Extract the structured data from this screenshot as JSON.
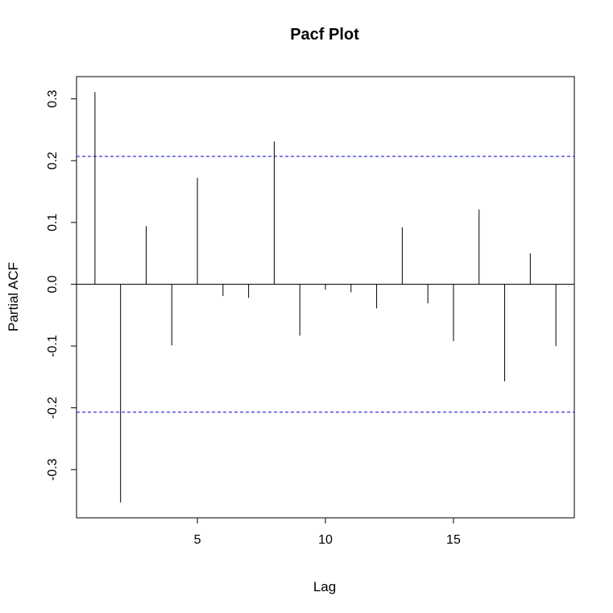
{
  "chart_data": {
    "type": "bar",
    "title": "Pacf Plot",
    "xlabel": "Lag",
    "ylabel": "Partial ACF",
    "x": [
      1,
      2,
      3,
      4,
      5,
      6,
      7,
      8,
      9,
      10,
      11,
      12,
      13,
      14,
      15,
      16,
      17,
      18,
      19
    ],
    "values": [
      0.311,
      -0.353,
      0.094,
      -0.099,
      0.172,
      -0.019,
      -0.022,
      0.231,
      -0.083,
      -0.009,
      -0.013,
      -0.039,
      0.092,
      -0.031,
      -0.092,
      0.121,
      -0.157,
      0.05,
      -0.1
    ],
    "confidence_bounds": [
      0.207,
      -0.207
    ],
    "xlim": [
      0.28,
      19.72
    ],
    "ylim": [
      -0.378,
      0.336
    ],
    "x_ticks": [
      5,
      10,
      15
    ],
    "x_tick_labels": [
      "5",
      "10",
      "15"
    ],
    "y_ticks": [
      -0.3,
      -0.2,
      -0.1,
      0.0,
      0.1,
      0.2,
      0.3
    ],
    "y_tick_labels": [
      "-0.3",
      "-0.2",
      "-0.1",
      "0.0",
      "0.1",
      "0.2",
      "0.3"
    ],
    "grid": false,
    "legend": "none",
    "colors": {
      "bars": "#000000",
      "bounds": "#0000cd",
      "zero_line": "#000000",
      "frame": "#000000"
    }
  }
}
